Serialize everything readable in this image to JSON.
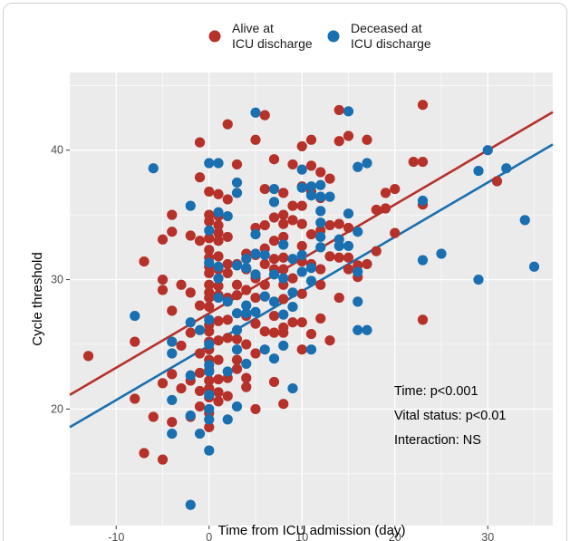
{
  "chart_data": {
    "type": "scatter",
    "title": "",
    "xlabel": "Time from ICU admission (day)",
    "ylabel": "Cycle threshold",
    "xlim": [
      -15,
      37
    ],
    "ylim": [
      11,
      46
    ],
    "x_ticks": [
      -10,
      0,
      10,
      20,
      30
    ],
    "y_ticks": [
      20,
      30,
      40
    ],
    "grid": true,
    "legend_position": "top",
    "annotations": [
      "Time: p<0.001",
      "Vital status: p<0.01",
      "Interaction: NS"
    ],
    "series": [
      {
        "name": "Alive at ICU discharge",
        "color": "#B5312A",
        "regression": {
          "slope": 0.42,
          "intercept": 27.4
        },
        "points": [
          [
            -13,
            24.1
          ],
          [
            -8,
            25.2
          ],
          [
            -8,
            20.8
          ],
          [
            -7,
            31.4
          ],
          [
            -7,
            16.6
          ],
          [
            -6,
            19.4
          ],
          [
            -5,
            33.1
          ],
          [
            -5,
            30.0
          ],
          [
            -5,
            29.2
          ],
          [
            -5,
            22.0
          ],
          [
            -5,
            16.1
          ],
          [
            -4,
            35.0
          ],
          [
            -4,
            33.7
          ],
          [
            -4,
            27.6
          ],
          [
            -4,
            22.7
          ],
          [
            -4,
            19.0
          ],
          [
            -3,
            29.6
          ],
          [
            -3,
            24.9
          ],
          [
            -3,
            21.6
          ],
          [
            -2,
            33.4
          ],
          [
            -2,
            29.0
          ],
          [
            -2,
            25.9
          ],
          [
            -2,
            22.2
          ],
          [
            -2,
            19.4
          ],
          [
            -1,
            40.6
          ],
          [
            -1,
            37.9
          ],
          [
            -1,
            33.0
          ],
          [
            -1,
            28.0
          ],
          [
            -1,
            24.3
          ],
          [
            -1,
            22.8
          ],
          [
            -1,
            21.4
          ],
          [
            -1,
            20.2
          ],
          [
            0,
            36.8
          ],
          [
            0,
            35.0
          ],
          [
            0,
            34.5
          ],
          [
            0,
            33.2
          ],
          [
            0,
            32.3
          ],
          [
            0,
            31.7
          ],
          [
            0,
            31.0
          ],
          [
            0,
            30.5
          ],
          [
            0,
            29.6
          ],
          [
            0,
            29.0
          ],
          [
            0,
            28.6
          ],
          [
            0,
            27.9
          ],
          [
            0,
            26.5
          ],
          [
            0,
            26.0
          ],
          [
            0,
            25.2
          ],
          [
            0,
            24.6
          ],
          [
            0,
            23.8
          ],
          [
            0,
            23.0
          ],
          [
            0,
            22.2
          ],
          [
            0,
            21.6
          ],
          [
            0,
            20.9
          ],
          [
            0,
            19.7
          ],
          [
            0,
            18.6
          ],
          [
            1,
            36.6
          ],
          [
            1,
            34.9
          ],
          [
            1,
            34.2
          ],
          [
            1,
            33.6
          ],
          [
            1,
            33.0
          ],
          [
            1,
            31.8
          ],
          [
            1,
            30.8
          ],
          [
            1,
            29.5
          ],
          [
            1,
            28.8
          ],
          [
            1,
            26.8
          ],
          [
            1,
            25.3
          ],
          [
            1,
            23.8
          ],
          [
            1,
            22.3
          ],
          [
            1,
            21.3
          ],
          [
            1,
            20.6
          ],
          [
            2,
            42.0
          ],
          [
            2,
            36.2
          ],
          [
            2,
            33.3
          ],
          [
            2,
            31.2
          ],
          [
            2,
            30.5
          ],
          [
            2,
            28.6
          ],
          [
            2,
            26.9
          ],
          [
            2,
            25.5
          ],
          [
            2,
            22.4
          ],
          [
            2,
            21.0
          ],
          [
            3,
            38.9
          ],
          [
            3,
            31.2
          ],
          [
            3,
            29.6
          ],
          [
            3,
            28.8
          ],
          [
            3,
            25.4
          ],
          [
            3,
            23.8
          ],
          [
            3,
            23.1
          ],
          [
            4,
            32.0
          ],
          [
            4,
            30.8
          ],
          [
            4,
            29.2
          ],
          [
            4,
            27.2
          ],
          [
            4,
            25.0
          ],
          [
            4,
            22.4
          ],
          [
            4,
            21.7
          ],
          [
            5,
            40.8
          ],
          [
            5,
            34.0
          ],
          [
            5,
            31.9
          ],
          [
            5,
            30.1
          ],
          [
            5,
            28.6
          ],
          [
            5,
            26.6
          ],
          [
            5,
            24.3
          ],
          [
            5,
            20.0
          ],
          [
            6,
            42.7
          ],
          [
            6,
            37.0
          ],
          [
            6,
            34.2
          ],
          [
            6,
            32.4
          ],
          [
            6,
            31.2
          ],
          [
            6,
            29.6
          ],
          [
            6,
            28.7
          ],
          [
            6,
            26.0
          ],
          [
            7,
            39.3
          ],
          [
            7,
            34.8
          ],
          [
            7,
            33.0
          ],
          [
            7,
            31.6
          ],
          [
            7,
            30.8
          ],
          [
            7,
            27.2
          ],
          [
            7,
            25.9
          ],
          [
            7,
            22.1
          ],
          [
            8,
            36.7
          ],
          [
            8,
            35.0
          ],
          [
            8,
            34.3
          ],
          [
            8,
            33.3
          ],
          [
            8,
            31.7
          ],
          [
            8,
            30.8
          ],
          [
            8,
            29.6
          ],
          [
            8,
            28.5
          ],
          [
            8,
            26.3
          ],
          [
            8,
            25.9
          ],
          [
            8,
            20.4
          ],
          [
            9,
            38.9
          ],
          [
            9,
            35.7
          ],
          [
            9,
            34.6
          ],
          [
            9,
            30.1
          ],
          [
            9,
            26.7
          ],
          [
            10,
            40.3
          ],
          [
            10,
            37.2
          ],
          [
            10,
            35.7
          ],
          [
            10,
            34.3
          ],
          [
            10,
            32.6
          ],
          [
            10,
            31.4
          ],
          [
            10,
            28.9
          ],
          [
            10,
            26.7
          ],
          [
            10,
            24.6
          ],
          [
            11,
            40.8
          ],
          [
            11,
            38.8
          ],
          [
            11,
            36.8
          ],
          [
            11,
            33.5
          ],
          [
            11,
            31.2
          ],
          [
            11,
            25.8
          ],
          [
            12,
            38.3
          ],
          [
            12,
            36.3
          ],
          [
            12,
            33.8
          ],
          [
            12,
            30.8
          ],
          [
            12,
            29.6
          ],
          [
            12,
            27.0
          ],
          [
            13,
            37.8
          ],
          [
            13,
            34.2
          ],
          [
            13,
            31.8
          ],
          [
            13,
            25.3
          ],
          [
            14,
            43.1
          ],
          [
            14,
            40.7
          ],
          [
            14,
            34.3
          ],
          [
            14,
            31.7
          ],
          [
            14,
            28.6
          ],
          [
            15,
            41.1
          ],
          [
            15,
            34.0
          ],
          [
            15,
            31.7
          ],
          [
            15,
            30.8
          ],
          [
            16,
            31.1
          ],
          [
            16,
            30.2
          ],
          [
            17,
            40.8
          ],
          [
            17,
            31.2
          ],
          [
            18,
            35.4
          ],
          [
            18,
            32.2
          ],
          [
            19,
            36.7
          ],
          [
            19,
            35.5
          ],
          [
            20,
            37.0
          ],
          [
            20,
            33.6
          ],
          [
            22,
            39.1
          ],
          [
            23,
            43.5
          ],
          [
            23,
            39.1
          ],
          [
            23,
            35.8
          ],
          [
            23,
            26.9
          ],
          [
            31,
            37.6
          ]
        ]
      },
      {
        "name": "Deceased at ICU discharge",
        "color": "#1A6FB0",
        "regression": {
          "slope": 0.42,
          "intercept": 24.9
        },
        "points": [
          [
            -8,
            27.2
          ],
          [
            -6,
            38.6
          ],
          [
            -4,
            25.2
          ],
          [
            -4,
            24.3
          ],
          [
            -4,
            20.7
          ],
          [
            -4,
            18.1
          ],
          [
            -2,
            35.7
          ],
          [
            -2,
            26.7
          ],
          [
            -2,
            22.6
          ],
          [
            -2,
            19.5
          ],
          [
            -2,
            12.6
          ],
          [
            -1,
            26.1
          ],
          [
            -1,
            18.1
          ],
          [
            0,
            39.0
          ],
          [
            0,
            33.8
          ],
          [
            0,
            31.3
          ],
          [
            0,
            26.9
          ],
          [
            0,
            25.0
          ],
          [
            0,
            23.4
          ],
          [
            0,
            22.9
          ],
          [
            0,
            21.1
          ],
          [
            0,
            20.0
          ],
          [
            0,
            19.2
          ],
          [
            0,
            16.8
          ],
          [
            1,
            39.0
          ],
          [
            1,
            35.2
          ],
          [
            1,
            31.0
          ],
          [
            1,
            30.1
          ],
          [
            1,
            28.6
          ],
          [
            2,
            34.9
          ],
          [
            2,
            28.3
          ],
          [
            2,
            22.9
          ],
          [
            2,
            19.2
          ],
          [
            3,
            37.5
          ],
          [
            3,
            36.7
          ],
          [
            3,
            31.1
          ],
          [
            3,
            27.4
          ],
          [
            3,
            26.1
          ],
          [
            3,
            24.6
          ],
          [
            3,
            20.2
          ],
          [
            4,
            31.6
          ],
          [
            4,
            30.9
          ],
          [
            4,
            28.0
          ],
          [
            4,
            27.4
          ],
          [
            4,
            23.5
          ],
          [
            5,
            42.9
          ],
          [
            5,
            33.5
          ],
          [
            5,
            32.0
          ],
          [
            5,
            30.4
          ],
          [
            5,
            27.5
          ],
          [
            6,
            31.9
          ],
          [
            6,
            28.7
          ],
          [
            6,
            24.6
          ],
          [
            7,
            37.0
          ],
          [
            7,
            36.0
          ],
          [
            7,
            30.4
          ],
          [
            7,
            28.3
          ],
          [
            7,
            23.9
          ],
          [
            8,
            32.7
          ],
          [
            8,
            30.1
          ],
          [
            8,
            27.3
          ],
          [
            8,
            24.9
          ],
          [
            9,
            31.6
          ],
          [
            9,
            29.0
          ],
          [
            9,
            27.9
          ],
          [
            9,
            21.6
          ],
          [
            10,
            38.5
          ],
          [
            10,
            37.1
          ],
          [
            10,
            31.9
          ],
          [
            10,
            30.6
          ],
          [
            11,
            37.2
          ],
          [
            11,
            36.5
          ],
          [
            11,
            30.9
          ],
          [
            11,
            29.9
          ],
          [
            11,
            24.6
          ],
          [
            12,
            37.3
          ],
          [
            12,
            36.4
          ],
          [
            12,
            35.3
          ],
          [
            12,
            34.4
          ],
          [
            12,
            33.3
          ],
          [
            12,
            32.5
          ],
          [
            13,
            36.4
          ],
          [
            14,
            33.1
          ],
          [
            14,
            32.6
          ],
          [
            15,
            43.0
          ],
          [
            15,
            35.1
          ],
          [
            15,
            32.6
          ],
          [
            16,
            38.7
          ],
          [
            16,
            33.7
          ],
          [
            16,
            30.6
          ],
          [
            16,
            28.3
          ],
          [
            16,
            26.1
          ],
          [
            17,
            39.0
          ],
          [
            17,
            26.1
          ],
          [
            23,
            36.1
          ],
          [
            23,
            31.5
          ],
          [
            25,
            32.0
          ],
          [
            29,
            38.4
          ],
          [
            29,
            30.0
          ],
          [
            30,
            40.0
          ],
          [
            32,
            38.6
          ],
          [
            34,
            34.6
          ],
          [
            35,
            31.0
          ]
        ]
      }
    ]
  }
}
